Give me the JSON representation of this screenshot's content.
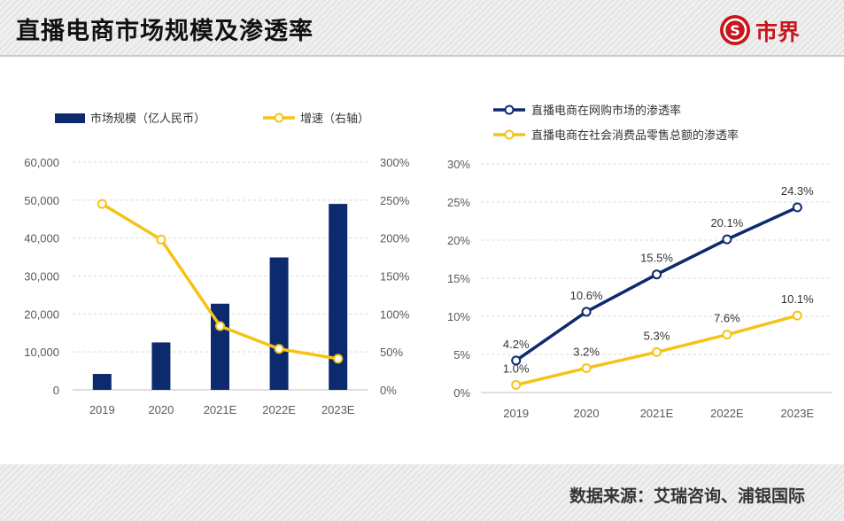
{
  "header": {
    "title": "直播电商市场规模及渗透率",
    "brand": "市界",
    "colors": {
      "brand_red": "#c8161d"
    }
  },
  "footer": {
    "source": "数据来源：艾瑞咨询、浦银国际"
  },
  "chart_data": [
    {
      "type": "bar",
      "categories": [
        "2019",
        "2020",
        "2021E",
        "2022E",
        "2023E"
      ],
      "series": [
        {
          "name": "市场规模（亿人民币）",
          "type": "bar",
          "axis": "left",
          "color": "#0d2a6e",
          "values": [
            4200,
            12500,
            22700,
            34900,
            49000
          ]
        },
        {
          "name": "增速（右轴）",
          "type": "line",
          "axis": "right",
          "color": "#f5c317",
          "values": [
            245,
            198,
            84,
            54,
            41
          ]
        }
      ],
      "y_left": {
        "lim": [
          0,
          60000
        ],
        "ticks": [
          "0",
          "10,000",
          "20,000",
          "30,000",
          "40,000",
          "50,000",
          "60,000"
        ]
      },
      "y_right": {
        "lim": [
          0,
          300
        ],
        "ticks": [
          "0%",
          "50%",
          "100%",
          "150%",
          "200%",
          "250%",
          "300%"
        ]
      },
      "grid": true,
      "legend": "top"
    },
    {
      "type": "line",
      "x": [
        "2019",
        "2020",
        "2021E",
        "2022E",
        "2023E"
      ],
      "series": [
        {
          "name": "直播电商在网购市场的渗透率",
          "color": "#0d2a6e",
          "values": [
            4.2,
            10.6,
            15.5,
            20.1,
            24.3
          ],
          "labels": [
            "4.2%",
            "10.6%",
            "15.5%",
            "20.1%",
            "24.3%"
          ]
        },
        {
          "name": "直播电商在社会消费品零售总额的渗透率",
          "color": "#f5c317",
          "values": [
            1.0,
            3.2,
            5.3,
            7.6,
            10.1
          ],
          "labels": [
            "1.0%",
            "3.2%",
            "5.3%",
            "7.6%",
            "10.1%"
          ]
        }
      ],
      "ylim": [
        0,
        30
      ],
      "yticks": [
        "0%",
        "5%",
        "10%",
        "15%",
        "20%",
        "25%",
        "30%"
      ],
      "grid": true,
      "legend": "top"
    }
  ]
}
